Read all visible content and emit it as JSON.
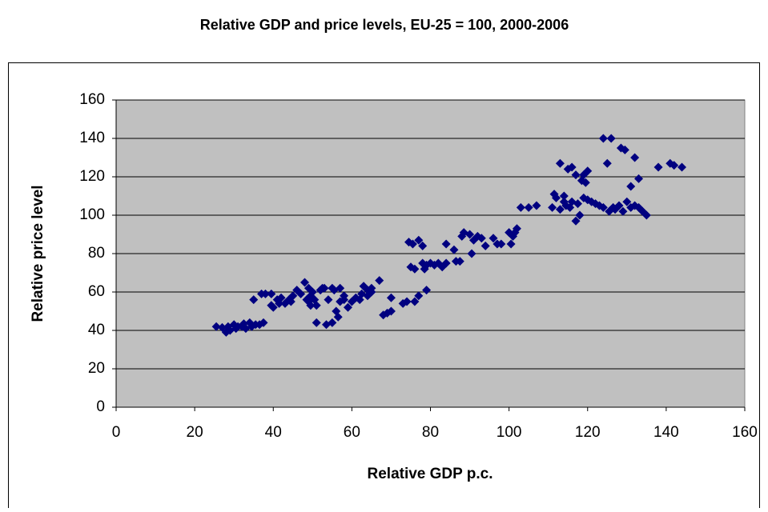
{
  "chart_data": {
    "type": "scatter",
    "title": "Relative GDP and price levels, EU-25 = 100, 2000-2006",
    "x_label": "Relative GDP p.c.",
    "y_label": "Relative price level",
    "color": "#000080",
    "plot_background": "#c0c0c0",
    "grid": true,
    "xlim": [
      0,
      160
    ],
    "xticks": [
      0,
      20,
      40,
      60,
      80,
      100,
      120,
      140,
      160
    ],
    "ylim": [
      0,
      160
    ],
    "yticks": [
      0,
      20,
      40,
      60,
      80,
      100,
      120,
      140,
      160
    ],
    "x": [
      25.5,
      27,
      28,
      28.5,
      29,
      30,
      30.5,
      31,
      32,
      32.5,
      33,
      34,
      34.5,
      35,
      35.5,
      36.5,
      37,
      37.5,
      38,
      39.5,
      39.5,
      40,
      41,
      41.5,
      42,
      43,
      44,
      44.5,
      45,
      46,
      47,
      48,
      48.5,
      49,
      49,
      49.5,
      49.5,
      50,
      50.5,
      51,
      51,
      52,
      52.5,
      53,
      53.5,
      54,
      55,
      55,
      55.5,
      56,
      56.5,
      57,
      57,
      58,
      58,
      59,
      60,
      61,
      62,
      62.5,
      63,
      64,
      64,
      65,
      65,
      67,
      68,
      69,
      70,
      70,
      73,
      74,
      74.5,
      75,
      75.5,
      76,
      76,
      77,
      77,
      78,
      78,
      78.5,
      79,
      79,
      80,
      81,
      82,
      83,
      84,
      84,
      86,
      86.5,
      87.5,
      88,
      88.5,
      90,
      90.5,
      91,
      92,
      93,
      94,
      96,
      97,
      98,
      100,
      100.5,
      101,
      101.5,
      102,
      103,
      105,
      107,
      111,
      111.5,
      112,
      113,
      113,
      114,
      114,
      114.5,
      115,
      115.5,
      116,
      116,
      117,
      117,
      117.5,
      118,
      118.5,
      119,
      119,
      119.5,
      120,
      120,
      121,
      122,
      123,
      124,
      124,
      125,
      125.5,
      126,
      126.5,
      127,
      128,
      128.5,
      129,
      129.5,
      130,
      131,
      131,
      132,
      132,
      133,
      133,
      134,
      135,
      138,
      141,
      142,
      144
    ],
    "values": [
      42,
      41.5,
      39,
      42,
      40,
      43,
      41,
      42,
      42,
      43.5,
      41,
      44,
      42,
      56,
      43,
      43,
      59,
      44,
      59,
      59,
      53,
      52,
      56,
      54,
      57,
      54,
      56,
      55,
      58,
      61,
      59,
      65,
      56,
      55,
      62,
      58,
      53,
      60,
      56,
      44,
      53,
      61,
      62,
      62,
      43,
      56,
      44,
      62,
      61,
      50,
      47,
      55,
      62,
      58,
      56,
      52,
      55,
      57,
      56,
      59,
      63,
      61,
      58,
      62,
      60,
      66,
      48,
      49,
      57,
      50,
      54,
      55,
      86,
      73,
      85,
      55,
      72,
      87,
      58,
      84,
      75,
      72,
      61,
      74,
      75,
      74,
      75,
      73,
      85,
      75,
      82,
      76,
      76,
      89,
      91,
      90,
      80,
      87,
      89,
      88,
      84,
      88,
      85,
      85,
      91,
      85,
      89,
      91,
      93,
      104,
      104,
      105,
      104,
      111,
      109,
      103,
      127,
      107,
      110,
      105,
      124,
      104,
      107,
      125,
      121,
      97,
      106,
      100,
      118,
      109,
      121,
      117,
      108,
      123,
      107,
      106,
      105,
      140,
      104,
      127,
      102,
      140,
      104,
      103,
      105,
      135,
      102,
      134,
      107,
      104,
      115,
      130,
      105,
      119,
      104,
      102,
      100,
      125,
      127,
      126,
      125
    ]
  }
}
